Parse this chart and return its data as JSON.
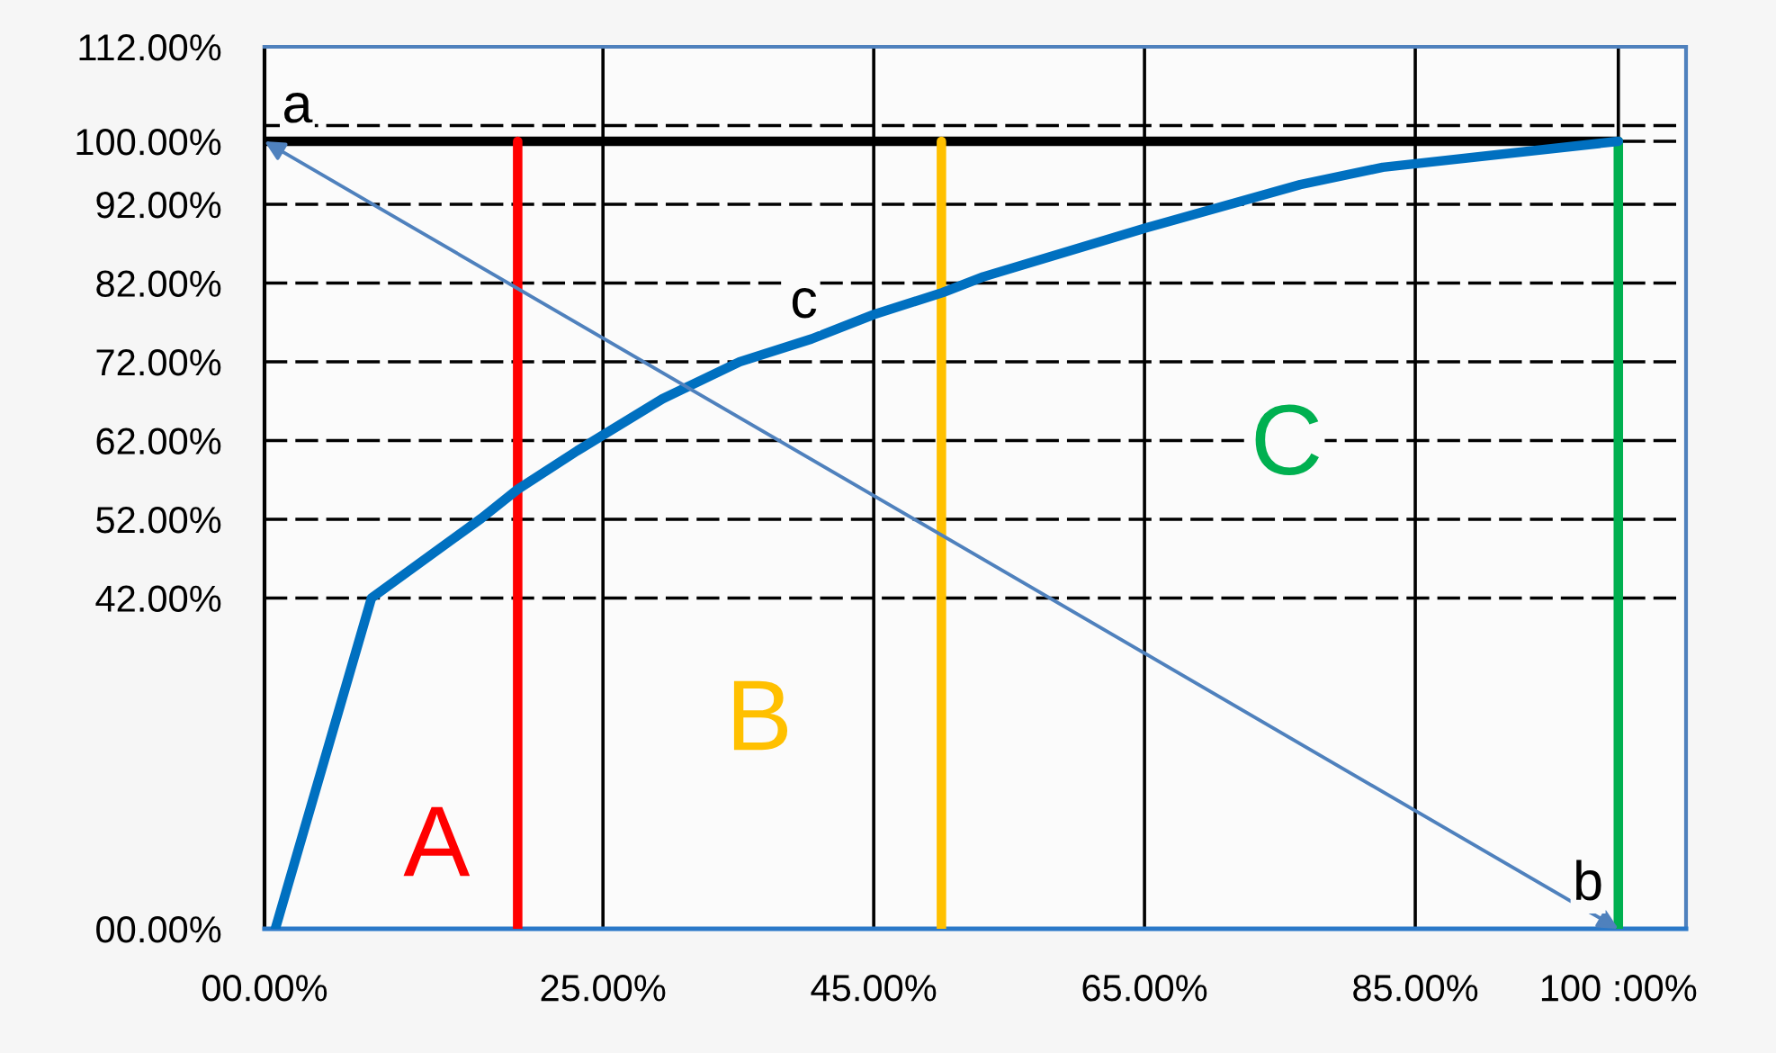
{
  "chart_data": {
    "type": "line",
    "xlim": [
      0,
      105
    ],
    "ylim": [
      0,
      112
    ],
    "grid": true,
    "xticks": [
      {
        "value": 0,
        "label": "00.00%"
      },
      {
        "value": 25,
        "label": "25.00%"
      },
      {
        "value": 45,
        "label": "45.00%"
      },
      {
        "value": 65,
        "label": "65.00%"
      },
      {
        "value": 85,
        "label": "85.00%"
      },
      {
        "value": 100,
        "label": "100 :00%"
      },
      {
        "value": 105,
        "label": null
      }
    ],
    "yticks": [
      {
        "value": 0,
        "label": "00.00%"
      },
      {
        "value": 42,
        "label": "42.00%"
      },
      {
        "value": 52,
        "label": "52.00%"
      },
      {
        "value": 62,
        "label": "62.00%"
      },
      {
        "value": 72,
        "label": "72.00%"
      },
      {
        "value": 82,
        "label": "82.00%"
      },
      {
        "value": 92,
        "label": "92.00%"
      },
      {
        "value": 100,
        "label": "100.00%"
      },
      {
        "value": 102,
        "label": null
      },
      {
        "value": 112,
        "label": "112.00%"
      }
    ],
    "series": [
      {
        "color": "#000000",
        "x": [
          0,
          100
        ],
        "values": [
          100,
          100
        ]
      },
      {
        "name": "A",
        "color": "#ff0000",
        "x": [
          18.7,
          18.7
        ],
        "values": [
          0,
          100
        ]
      },
      {
        "name": "B",
        "color": "#ffc000",
        "x": [
          50,
          50
        ],
        "values": [
          0,
          100
        ]
      },
      {
        "name": "C",
        "color": "#00b050",
        "x": [
          100,
          100
        ],
        "values": [
          0,
          100
        ]
      },
      {
        "color": "#0070c0",
        "x": [
          0.8,
          7.9,
          16,
          18.7,
          23.1,
          29.4,
          35.1,
          40.4,
          45,
          50.1,
          53.1,
          65.1,
          76.5,
          82.6,
          100
        ],
        "values": [
          0,
          42,
          52.1,
          55.8,
          60.7,
          67.3,
          72,
          74.9,
          78,
          80.8,
          82.8,
          89,
          94.5,
          96.7,
          100
        ]
      }
    ],
    "annotations": [
      {
        "text": "a",
        "x": 0,
        "y": 100
      },
      {
        "text": "b",
        "x": 100,
        "y": 0
      },
      {
        "text": "c",
        "x": 40.4,
        "y": 74.9
      }
    ]
  }
}
